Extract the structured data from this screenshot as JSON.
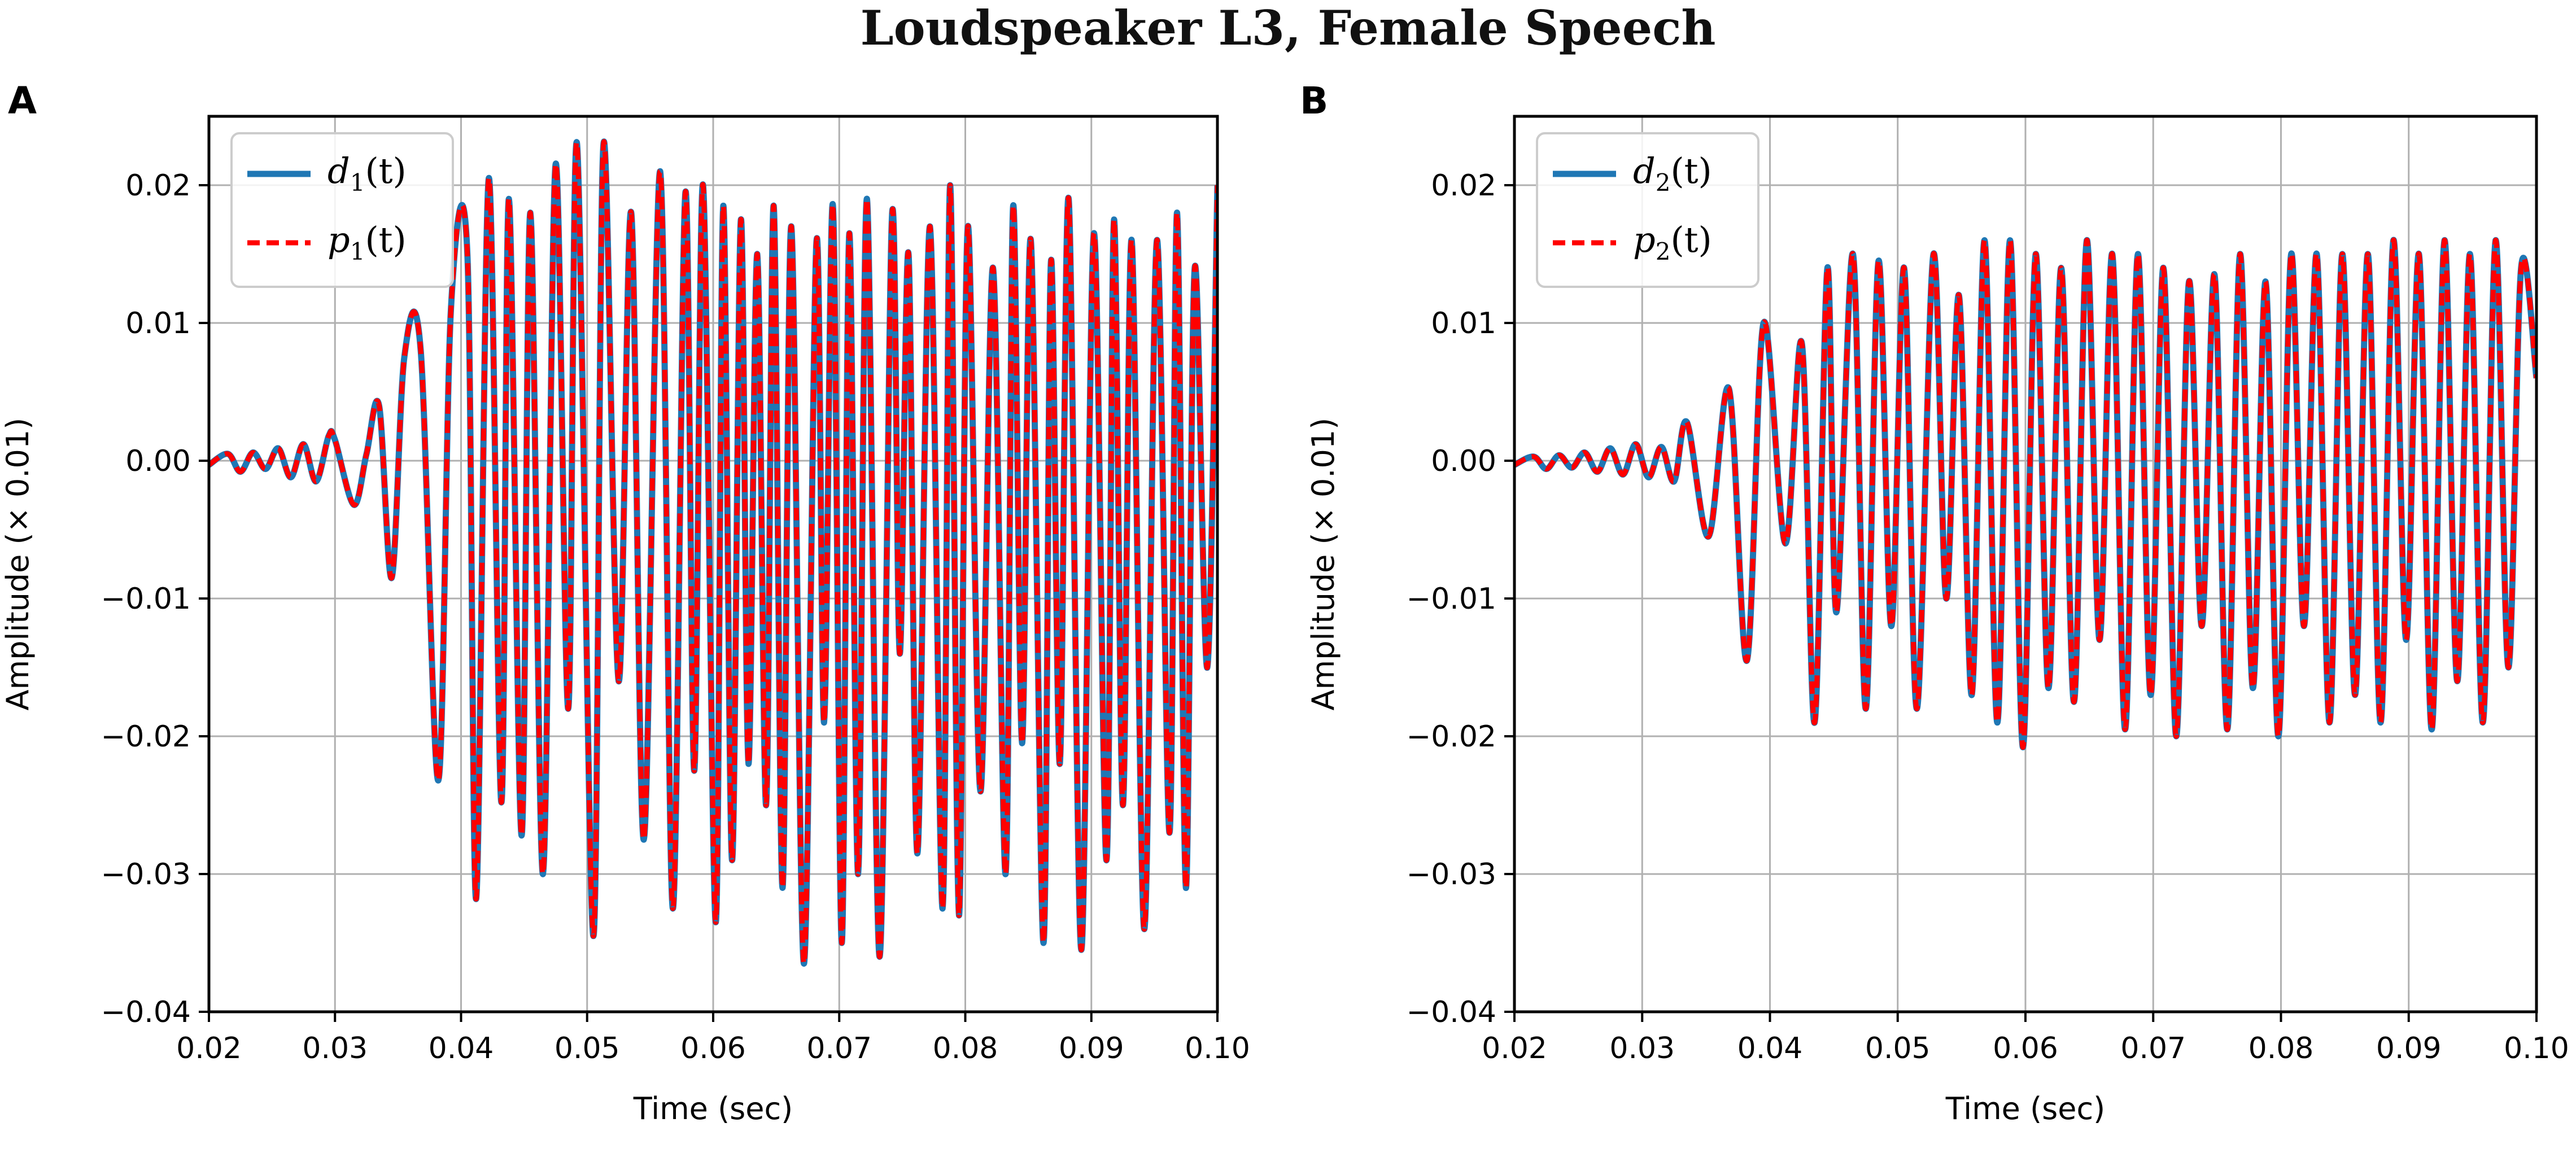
{
  "figure_title": "Loudspeaker L3, Female Speech",
  "panels": [
    {
      "label": "A"
    },
    {
      "label": "B"
    }
  ],
  "colors": {
    "d": "#1f77b4",
    "p": "#ff0000",
    "grid": "#b0b0b0",
    "axis": "#000000"
  },
  "chart_data": [
    {
      "type": "line",
      "title": "",
      "xlabel": "Time (sec)",
      "ylabel": "Amplitude (× 0.01)",
      "xlim": [
        0.02,
        0.1
      ],
      "ylim": [
        -0.04,
        0.025
      ],
      "xticks": [
        0.02,
        0.03,
        0.04,
        0.05,
        0.06,
        0.07,
        0.08,
        0.09,
        0.1
      ],
      "xtick_labels": [
        "0.02",
        "0.03",
        "0.04",
        "0.05",
        "0.06",
        "0.07",
        "0.08",
        "0.09",
        "0.10"
      ],
      "yticks": [
        -0.04,
        -0.03,
        -0.02,
        -0.01,
        0.0,
        0.01,
        0.02
      ],
      "ytick_labels": [
        "−0.04",
        "−0.03",
        "−0.02",
        "−0.01",
        "0.00",
        "0.01",
        "0.02"
      ],
      "grid": true,
      "legend_position": "top-left",
      "series": [
        {
          "name": "d1(t)",
          "legend_main": "d",
          "legend_sub": "1",
          "legend_suffix": "(t)",
          "style": "solid",
          "x": [
            0.02,
            0.0215,
            0.0225,
            0.0235,
            0.0245,
            0.0255,
            0.0265,
            0.0275,
            0.0285,
            0.0295,
            0.03,
            0.0315,
            0.0325,
            0.0335,
            0.0345,
            0.0355,
            0.0368,
            0.0382,
            0.0392,
            0.0405,
            0.0412,
            0.0422,
            0.0432,
            0.0438,
            0.0448,
            0.0455,
            0.0465,
            0.0475,
            0.0485,
            0.0492,
            0.0505,
            0.0513,
            0.0525,
            0.0535,
            0.0545,
            0.0558,
            0.0568,
            0.0578,
            0.0585,
            0.0592,
            0.0602,
            0.0608,
            0.0615,
            0.0622,
            0.0628,
            0.0635,
            0.0642,
            0.0648,
            0.0655,
            0.0662,
            0.0672,
            0.0682,
            0.0688,
            0.0695,
            0.0702,
            0.0708,
            0.0715,
            0.0722,
            0.0732,
            0.0742,
            0.0748,
            0.0755,
            0.0762,
            0.0772,
            0.0782,
            0.0788,
            0.0795,
            0.0802,
            0.0812,
            0.0822,
            0.0832,
            0.0838,
            0.0845,
            0.0852,
            0.0862,
            0.0868,
            0.0875,
            0.0882,
            0.0892,
            0.0902,
            0.0912,
            0.0918,
            0.0925,
            0.0932,
            0.0942,
            0.0952,
            0.0962,
            0.0968,
            0.0975,
            0.0982,
            0.0992,
            0.1
          ],
          "y": [
            -0.0003,
            0.0005,
            -0.0008,
            0.0006,
            -0.0006,
            0.0009,
            -0.0012,
            0.0012,
            -0.0015,
            0.0018,
            0.0015,
            -0.0032,
            0.0005,
            0.004,
            -0.0085,
            0.0075,
            0.008,
            -0.0232,
            0.011,
            0.015,
            -0.0318,
            0.0205,
            -0.0248,
            0.019,
            -0.0272,
            0.018,
            -0.03,
            0.0215,
            -0.018,
            0.023,
            -0.0345,
            0.023,
            -0.016,
            0.018,
            -0.0275,
            0.021,
            -0.0325,
            0.0195,
            -0.0225,
            0.02,
            -0.0335,
            0.0185,
            -0.029,
            0.0175,
            -0.022,
            0.015,
            -0.025,
            0.0185,
            -0.031,
            0.017,
            -0.0365,
            0.016,
            -0.019,
            0.0185,
            -0.035,
            0.0165,
            -0.03,
            0.019,
            -0.036,
            0.018,
            -0.014,
            0.015,
            -0.0285,
            0.017,
            -0.0325,
            0.02,
            -0.033,
            0.017,
            -0.024,
            0.014,
            -0.03,
            0.0185,
            -0.0205,
            0.016,
            -0.035,
            0.0145,
            -0.022,
            0.019,
            -0.0355,
            0.0165,
            -0.029,
            0.0175,
            -0.025,
            0.016,
            -0.034,
            0.016,
            -0.027,
            0.018,
            -0.031,
            0.014,
            -0.015,
            0.02
          ]
        },
        {
          "name": "p1(t)",
          "legend_main": "p",
          "legend_sub": "1",
          "legend_suffix": "(t)",
          "style": "dashed",
          "same_as": 0
        }
      ]
    },
    {
      "type": "line",
      "title": "",
      "xlabel": "Time (sec)",
      "ylabel": "Amplitude (× 0.01)",
      "xlim": [
        0.02,
        0.1
      ],
      "ylim": [
        -0.04,
        0.025
      ],
      "xticks": [
        0.02,
        0.03,
        0.04,
        0.05,
        0.06,
        0.07,
        0.08,
        0.09,
        0.1
      ],
      "xtick_labels": [
        "0.02",
        "0.03",
        "0.04",
        "0.05",
        "0.06",
        "0.07",
        "0.08",
        "0.09",
        "0.10"
      ],
      "yticks": [
        -0.04,
        -0.03,
        -0.02,
        -0.01,
        0.0,
        0.01,
        0.02
      ],
      "ytick_labels": [
        "−0.04",
        "−0.03",
        "−0.02",
        "−0.01",
        "0.00",
        "0.01",
        "0.02"
      ],
      "grid": true,
      "legend_position": "top-left",
      "series": [
        {
          "name": "d2(t)",
          "legend_main": "d",
          "legend_sub": "2",
          "legend_suffix": "(t)",
          "style": "solid",
          "x": [
            0.02,
            0.0215,
            0.0225,
            0.0235,
            0.0245,
            0.0255,
            0.0265,
            0.0275,
            0.0285,
            0.0295,
            0.0305,
            0.0315,
            0.0325,
            0.0335,
            0.0352,
            0.0368,
            0.0382,
            0.0395,
            0.0412,
            0.0425,
            0.0435,
            0.0445,
            0.0452,
            0.0465,
            0.0475,
            0.0485,
            0.0495,
            0.0505,
            0.0515,
            0.0528,
            0.0538,
            0.0548,
            0.0558,
            0.0568,
            0.0578,
            0.0588,
            0.0598,
            0.0608,
            0.0618,
            0.0628,
            0.0638,
            0.0648,
            0.0658,
            0.0668,
            0.0678,
            0.0688,
            0.0698,
            0.0708,
            0.0718,
            0.0728,
            0.0738,
            0.0748,
            0.0758,
            0.0768,
            0.0778,
            0.0788,
            0.0798,
            0.0808,
            0.0818,
            0.0828,
            0.0838,
            0.0848,
            0.0858,
            0.0868,
            0.0878,
            0.0888,
            0.0898,
            0.0908,
            0.0918,
            0.0928,
            0.0938,
            0.0948,
            0.0958,
            0.0968,
            0.0978,
            0.0988,
            0.1
          ],
          "y": [
            -0.0003,
            0.0003,
            -0.0006,
            0.0004,
            -0.0005,
            0.0006,
            -0.0008,
            0.0009,
            -0.001,
            0.0012,
            -0.0012,
            0.001,
            -0.0015,
            0.0028,
            -0.0055,
            0.0052,
            -0.0145,
            0.01,
            -0.006,
            0.0085,
            -0.019,
            0.014,
            -0.011,
            0.015,
            -0.018,
            0.0145,
            -0.012,
            0.014,
            -0.018,
            0.015,
            -0.01,
            0.012,
            -0.017,
            0.016,
            -0.019,
            0.016,
            -0.0208,
            0.015,
            -0.0165,
            0.014,
            -0.0175,
            0.016,
            -0.013,
            0.015,
            -0.0195,
            0.015,
            -0.017,
            0.014,
            -0.02,
            0.013,
            -0.012,
            0.0135,
            -0.0195,
            0.015,
            -0.0165,
            0.013,
            -0.02,
            0.015,
            -0.012,
            0.015,
            -0.019,
            0.015,
            -0.017,
            0.015,
            -0.019,
            0.016,
            -0.013,
            0.015,
            -0.0195,
            0.016,
            -0.016,
            0.015,
            -0.019,
            0.016,
            -0.015,
            0.014,
            0.006
          ]
        },
        {
          "name": "p2(t)",
          "legend_main": "p",
          "legend_sub": "2",
          "legend_suffix": "(t)",
          "style": "dashed",
          "same_as": 0
        }
      ]
    }
  ]
}
